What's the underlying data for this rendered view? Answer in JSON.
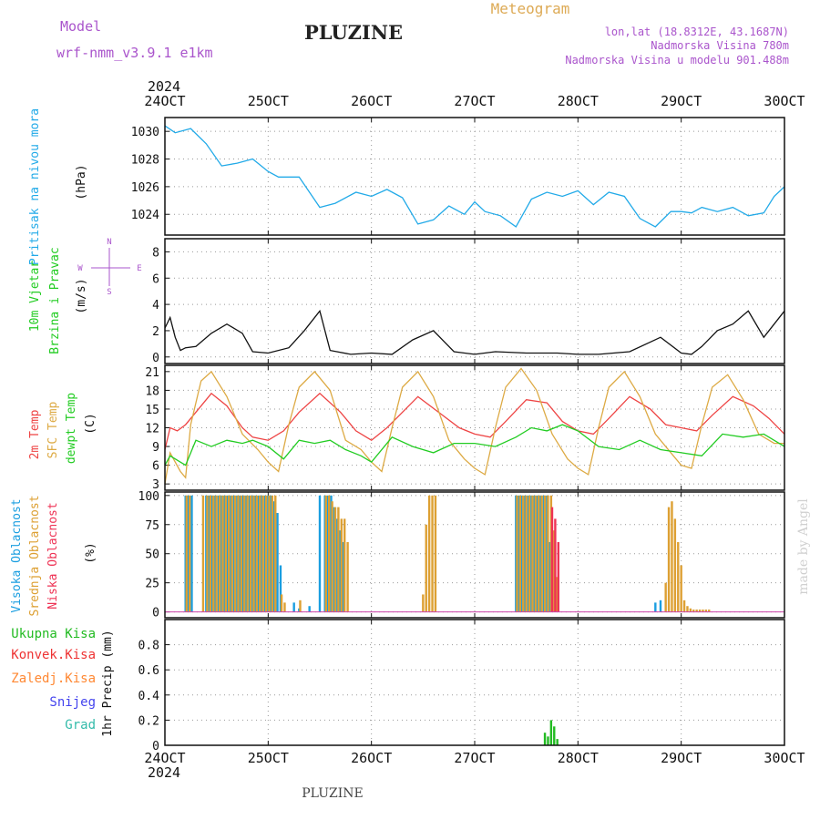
{
  "header": {
    "model_label": "Model",
    "model_name": "wrf-nmm_v3.9.1 e1km",
    "station": "PLUZINE",
    "meteogram": "Meteogram",
    "lonlat": "lon,lat (18.8312E, 43.1687N)",
    "altitude": "Nadmorska Visina 780m",
    "model_altitude": "Nadmorska Visina u modelu 901.488m"
  },
  "footer": {
    "station": "PLUZINE",
    "credit": "made by Angel"
  },
  "time_axis": {
    "year": "2024",
    "labels": [
      "24OCT",
      "25OCT",
      "26OCT",
      "27OCT",
      "28OCT",
      "29OCT",
      "30OCT"
    ]
  },
  "colors": {
    "pressure": "#22aae8",
    "temp2m": "#ee4444",
    "sfc_temp": "#ddaa44",
    "dewpoint": "#22cc22",
    "high_cloud": "#1a9ee0",
    "mid_cloud": "#dda033",
    "low_cloud": "#ee3355",
    "total_precip": "#22bb22",
    "conv_precip": "#ee3333",
    "frozen_precip": "#ff8833",
    "snow": "#4444ee",
    "hail": "#33bbaa",
    "model_text": "#aa55cc",
    "meteogram_text": "#ddaa55"
  },
  "chart_data": [
    {
      "type": "line",
      "id": "pressure",
      "ylabel": [
        "Pritisak na nivou mora",
        "(hPa)"
      ],
      "ylim": [
        1022.5,
        1031
      ],
      "yticks": [
        1024,
        1026,
        1028,
        1030
      ],
      "series": [
        {
          "color": "#22aae8",
          "x": [
            0,
            0.1,
            0.25,
            0.4,
            0.55,
            0.7,
            0.85,
            1.0,
            1.1,
            1.3,
            1.5,
            1.65,
            1.85,
            2.0,
            2.15,
            2.3,
            2.45,
            2.6,
            2.75,
            2.9,
            3.0,
            3.1,
            3.25,
            3.4,
            3.55,
            3.7,
            3.85,
            4.0,
            4.15,
            4.3,
            4.45,
            4.6,
            4.75,
            4.9,
            5.0,
            5.1,
            5.2,
            5.35,
            5.5,
            5.65,
            5.8,
            5.9,
            6.0
          ],
          "y": [
            1030.4,
            1029.9,
            1030.2,
            1029.1,
            1027.5,
            1027.7,
            1028.0,
            1027.1,
            1026.7,
            1026.7,
            1024.5,
            1024.8,
            1025.6,
            1025.3,
            1025.8,
            1025.2,
            1023.3,
            1023.6,
            1024.6,
            1024.0,
            1024.9,
            1024.2,
            1023.9,
            1023.1,
            1025.1,
            1025.6,
            1025.3,
            1025.7,
            1024.7,
            1025.6,
            1025.3,
            1023.7,
            1023.1,
            1024.2,
            1024.2,
            1024.1,
            1024.5,
            1024.2,
            1024.5,
            1023.9,
            1024.1,
            1025.3,
            1026.0
          ]
        }
      ]
    },
    {
      "type": "line",
      "id": "wind",
      "ylabel": [
        "10m Vjetar",
        "Brzina i Pravac",
        "(m/s)"
      ],
      "compass": [
        "N",
        "E",
        "S",
        "W"
      ],
      "ylim": [
        -0.5,
        9
      ],
      "yticks": [
        0,
        2,
        4,
        6,
        8
      ],
      "series": [
        {
          "name": "speed",
          "color": "#111111",
          "x": [
            0,
            0.05,
            0.1,
            0.15,
            0.2,
            0.3,
            0.45,
            0.6,
            0.75,
            0.85,
            1.0,
            1.2,
            1.35,
            1.5,
            1.6,
            1.8,
            2.0,
            2.2,
            2.4,
            2.6,
            2.8,
            3.0,
            3.2,
            3.5,
            3.8,
            4.0,
            4.2,
            4.5,
            4.8,
            5.0,
            5.1,
            5.2,
            5.35,
            5.5,
            5.65,
            5.8,
            5.9,
            6.0
          ],
          "y": [
            2.2,
            3.0,
            1.5,
            0.5,
            0.7,
            0.8,
            1.8,
            2.5,
            1.8,
            0.4,
            0.3,
            0.7,
            2.0,
            3.5,
            0.5,
            0.2,
            0.3,
            0.2,
            1.3,
            2.0,
            0.4,
            0.2,
            0.4,
            0.3,
            0.3,
            0.2,
            0.2,
            0.4,
            1.5,
            0.3,
            0.2,
            0.8,
            2.0,
            2.5,
            3.5,
            1.5,
            2.5,
            3.5
          ]
        }
      ]
    },
    {
      "type": "line",
      "id": "temperature",
      "ylabel": [
        "2m Temp",
        "SFC Temp",
        "dewpt Temp",
        "(C)"
      ],
      "ylim": [
        2,
        22
      ],
      "yticks": [
        3,
        6,
        9,
        12,
        15,
        18,
        21
      ],
      "series": [
        {
          "name": "2m Temp",
          "color": "#ee4444",
          "x": [
            0,
            0.05,
            0.12,
            0.2,
            0.3,
            0.45,
            0.6,
            0.75,
            0.85,
            1.0,
            1.15,
            1.3,
            1.5,
            1.7,
            1.85,
            2.0,
            2.15,
            2.3,
            2.45,
            2.65,
            2.85,
            3.0,
            3.15,
            3.3,
            3.5,
            3.7,
            3.85,
            4.0,
            4.15,
            4.3,
            4.5,
            4.7,
            4.85,
            5.0,
            5.15,
            5.3,
            5.5,
            5.7,
            5.85,
            6.0
          ],
          "y": [
            8.5,
            12.0,
            11.5,
            12.5,
            14.5,
            17.5,
            15.5,
            12.0,
            10.5,
            10.0,
            11.5,
            14.5,
            17.5,
            14.5,
            11.5,
            10.0,
            12.0,
            14.5,
            17.0,
            14.5,
            12.0,
            11.0,
            10.5,
            13.0,
            16.5,
            16.0,
            13.0,
            11.5,
            11.0,
            13.5,
            17.0,
            15.0,
            12.5,
            12.0,
            11.5,
            14.0,
            17.0,
            15.5,
            13.5,
            11.0
          ]
        },
        {
          "name": "SFC Temp",
          "color": "#ddaa44",
          "x": [
            0,
            0.05,
            0.15,
            0.2,
            0.25,
            0.35,
            0.45,
            0.6,
            0.75,
            0.9,
            1.0,
            1.1,
            1.2,
            1.3,
            1.45,
            1.6,
            1.75,
            1.9,
            2.0,
            2.1,
            2.2,
            2.3,
            2.45,
            2.6,
            2.75,
            2.9,
            3.0,
            3.1,
            3.2,
            3.3,
            3.45,
            3.6,
            3.75,
            3.9,
            4.0,
            4.1,
            4.2,
            4.3,
            4.45,
            4.6,
            4.75,
            4.9,
            5.0,
            5.1,
            5.2,
            5.3,
            5.45,
            5.6,
            5.75,
            5.9,
            6.0
          ],
          "y": [
            3.0,
            8.0,
            5.0,
            4.0,
            12.5,
            19.5,
            21.0,
            17.0,
            11.0,
            8.5,
            6.5,
            5.0,
            12.5,
            18.5,
            21.0,
            18.0,
            10.0,
            8.5,
            6.5,
            5.0,
            12.0,
            18.5,
            21.0,
            17.0,
            10.0,
            7.0,
            5.5,
            4.5,
            12.0,
            18.5,
            21.5,
            18.0,
            11.0,
            7.0,
            5.5,
            4.5,
            12.0,
            18.5,
            21.0,
            17.0,
            11.0,
            8.0,
            6.0,
            5.5,
            12.5,
            18.5,
            20.5,
            16.5,
            11.0,
            9.5,
            9.5
          ]
        },
        {
          "name": "dewpt Temp",
          "color": "#22cc22",
          "x": [
            0,
            0.05,
            0.15,
            0.2,
            0.3,
            0.45,
            0.6,
            0.75,
            0.85,
            1.0,
            1.15,
            1.3,
            1.45,
            1.6,
            1.75,
            1.9,
            2.0,
            2.2,
            2.4,
            2.6,
            2.8,
            3.0,
            3.2,
            3.4,
            3.55,
            3.7,
            3.85,
            4.0,
            4.2,
            4.4,
            4.6,
            4.8,
            5.0,
            5.2,
            5.4,
            5.6,
            5.8,
            6.0
          ],
          "y": [
            6.0,
            7.5,
            6.5,
            6.0,
            10.0,
            9.0,
            10.0,
            9.5,
            10.0,
            9.0,
            7.0,
            10.0,
            9.5,
            10.0,
            8.5,
            7.5,
            6.5,
            10.5,
            9.0,
            8.0,
            9.5,
            9.5,
            9.0,
            10.5,
            12.0,
            11.5,
            12.5,
            11.5,
            9.0,
            8.5,
            10.0,
            8.5,
            8.0,
            7.5,
            11.0,
            10.5,
            11.0,
            9.0
          ]
        }
      ]
    },
    {
      "type": "bar",
      "id": "cloudiness",
      "ylabel": [
        "Visoka Oblacnost",
        "Srednja Oblacnost",
        "Niska Oblacnost",
        "(%)"
      ],
      "ylim": [
        -5,
        103
      ],
      "yticks": [
        0,
        25,
        50,
        75,
        100
      ],
      "series": [
        {
          "name": "Visoka Oblacnost",
          "color": "#1a9ee0",
          "x": [
            0.2,
            0.23,
            0.26,
            0.4,
            0.43,
            0.46,
            0.49,
            0.52,
            0.55,
            0.58,
            0.61,
            0.64,
            0.67,
            0.7,
            0.73,
            0.76,
            0.79,
            0.82,
            0.85,
            0.88,
            0.91,
            0.94,
            0.97,
            1.0,
            1.03,
            1.06,
            1.09,
            1.12,
            1.25,
            1.3,
            1.4,
            1.5,
            1.55,
            1.58,
            1.61,
            1.64,
            1.67,
            1.7,
            1.73,
            3.4,
            3.43,
            3.46,
            3.49,
            3.52,
            3.55,
            3.58,
            3.61,
            3.64,
            3.67,
            3.7,
            3.73,
            4.75,
            4.8
          ],
          "values": [
            100,
            100,
            100,
            100,
            100,
            100,
            100,
            100,
            100,
            100,
            100,
            100,
            100,
            100,
            100,
            100,
            100,
            100,
            100,
            100,
            100,
            100,
            100,
            100,
            100,
            95,
            85,
            40,
            8,
            3,
            5,
            100,
            100,
            100,
            100,
            90,
            80,
            70,
            60,
            100,
            100,
            100,
            100,
            100,
            100,
            100,
            100,
            100,
            100,
            100,
            60,
            8,
            10
          ]
        },
        {
          "name": "Srednja Oblacnost",
          "color": "#dda033",
          "x": [
            0.21,
            0.24,
            0.37,
            0.41,
            0.44,
            0.47,
            0.5,
            0.53,
            0.56,
            0.59,
            0.62,
            0.65,
            0.68,
            0.71,
            0.74,
            0.77,
            0.8,
            0.83,
            0.86,
            0.89,
            0.92,
            0.95,
            0.98,
            1.01,
            1.04,
            1.07,
            1.13,
            1.16,
            1.31,
            1.56,
            1.59,
            1.62,
            1.65,
            1.68,
            1.71,
            1.74,
            1.77,
            2.5,
            2.53,
            2.56,
            2.59,
            2.62,
            3.41,
            3.44,
            3.47,
            3.5,
            3.53,
            3.56,
            3.59,
            3.62,
            3.65,
            3.68,
            3.71,
            3.74,
            3.77,
            3.8,
            4.85,
            4.88,
            4.91,
            4.94,
            4.97,
            5.0,
            5.03,
            5.06,
            5.09,
            5.12,
            5.15,
            5.18,
            5.21,
            5.24,
            5.27
          ],
          "values": [
            100,
            100,
            100,
            100,
            100,
            100,
            100,
            100,
            100,
            100,
            100,
            100,
            100,
            100,
            100,
            100,
            100,
            100,
            100,
            100,
            100,
            100,
            100,
            100,
            100,
            100,
            15,
            8,
            10,
            100,
            100,
            95,
            90,
            90,
            80,
            80,
            60,
            15,
            75,
            100,
            100,
            100,
            100,
            100,
            100,
            100,
            100,
            100,
            100,
            100,
            100,
            100,
            100,
            100,
            70,
            30,
            25,
            90,
            95,
            80,
            60,
            40,
            10,
            5,
            3,
            2,
            2,
            2,
            2,
            2,
            2
          ]
        },
        {
          "name": "Niska Oblacnost",
          "color": "#ee3355",
          "x": [
            3.75,
            3.78,
            3.81
          ],
          "values": [
            90,
            80,
            60
          ]
        }
      ]
    },
    {
      "type": "bar",
      "id": "precipitation",
      "ylabel": [
        "1hr Precip (mm)"
      ],
      "legend": [
        "Ukupna Kisa",
        "Konvek.Kisa",
        "Zaledj.Kisa",
        "Snijeg",
        "Grad"
      ],
      "ylim": [
        0,
        1.0
      ],
      "yticks": [
        0,
        0.2,
        0.4,
        0.6,
        0.8
      ],
      "series": [
        {
          "name": "Ukupna Kisa",
          "color": "#22bb22",
          "x": [
            3.68,
            3.71,
            3.74,
            3.77,
            3.8
          ],
          "values": [
            0.1,
            0.07,
            0.2,
            0.15,
            0.05
          ]
        }
      ]
    }
  ]
}
